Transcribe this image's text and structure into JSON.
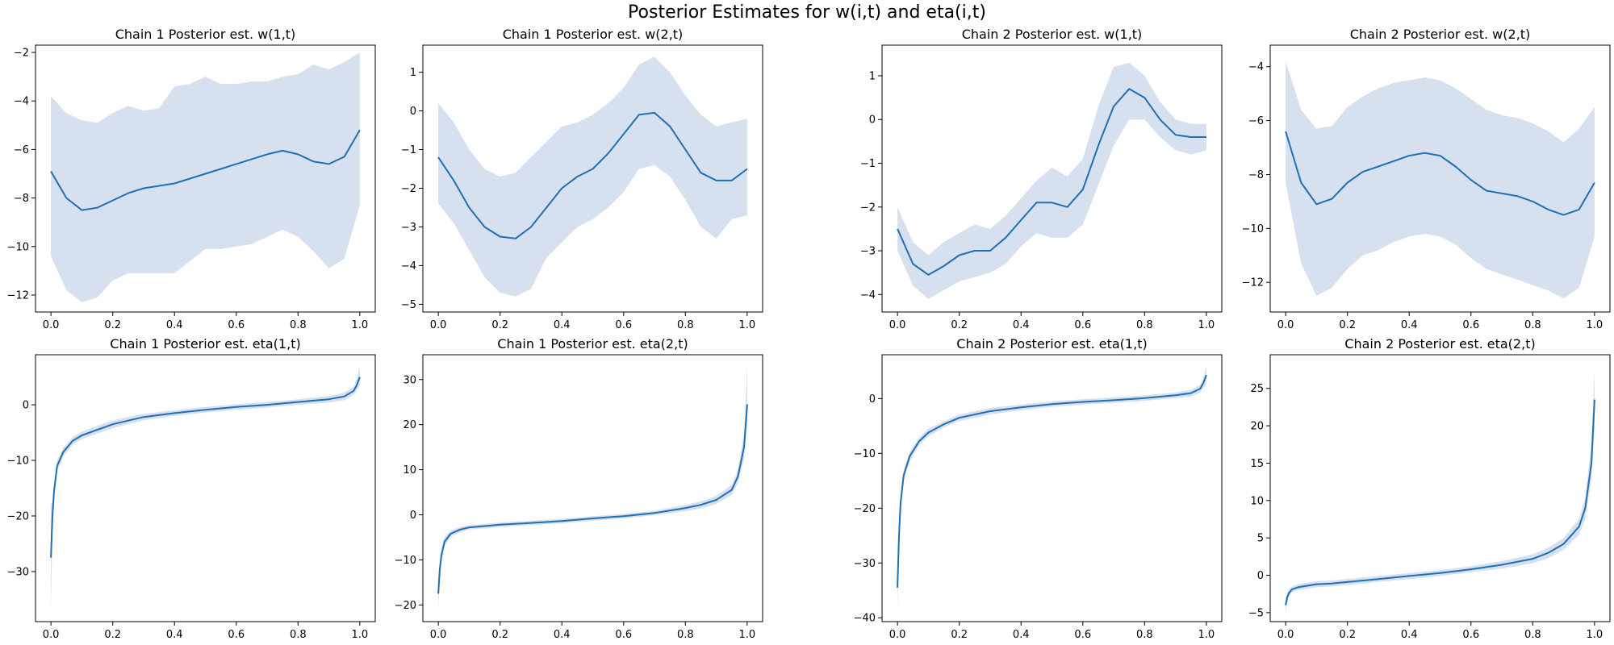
{
  "figure": {
    "title": "Posterior Estimates for w(i,t) and eta(i,t)"
  },
  "colors": {
    "line": "#1f6fb4",
    "band": "#b4c7e0",
    "axes": "#000000"
  },
  "chart_data": [
    {
      "type": "line",
      "title": "Chain 1 Posterior est. w(1,t)",
      "xlim": [
        -0.05,
        1.05
      ],
      "ylim": [
        -12.7,
        -1.7
      ],
      "xticks": [
        0.0,
        0.2,
        0.4,
        0.6,
        0.8,
        1.0
      ],
      "yticks": [
        -12,
        -10,
        -8,
        -6,
        -4,
        -2
      ],
      "grid": false,
      "series": [
        {
          "x": [
            0.0,
            0.05,
            0.1,
            0.15,
            0.2,
            0.25,
            0.3,
            0.35,
            0.4,
            0.45,
            0.5,
            0.55,
            0.6,
            0.65,
            0.7,
            0.75,
            0.8,
            0.85,
            0.9,
            0.95,
            1.0
          ],
          "mean": [
            -6.9,
            -8.0,
            -8.5,
            -8.4,
            -8.1,
            -7.8,
            -7.6,
            -7.5,
            -7.4,
            -7.2,
            -7.0,
            -6.8,
            -6.6,
            -6.4,
            -6.2,
            -6.05,
            -6.2,
            -6.5,
            -6.6,
            -6.3,
            -5.2
          ],
          "lower": [
            -10.4,
            -11.8,
            -12.3,
            -12.1,
            -11.4,
            -11.1,
            -11.1,
            -11.1,
            -11.1,
            -10.6,
            -10.1,
            -10.1,
            -10.0,
            -9.9,
            -9.6,
            -9.3,
            -9.6,
            -10.2,
            -10.9,
            -10.5,
            -8.3
          ],
          "upper": [
            -3.8,
            -4.5,
            -4.8,
            -4.9,
            -4.5,
            -4.2,
            -4.4,
            -4.3,
            -3.4,
            -3.3,
            -3.0,
            -3.3,
            -3.3,
            -3.2,
            -3.2,
            -3.0,
            -2.9,
            -2.5,
            -2.7,
            -2.4,
            -2.0
          ]
        }
      ]
    },
    {
      "type": "line",
      "title": "Chain 1 Posterior est. w(2,t)",
      "xlim": [
        -0.05,
        1.05
      ],
      "ylim": [
        -5.2,
        1.7
      ],
      "xticks": [
        0.0,
        0.2,
        0.4,
        0.6,
        0.8,
        1.0
      ],
      "yticks": [
        -5,
        -4,
        -3,
        -2,
        -1,
        0,
        1
      ],
      "grid": false,
      "series": [
        {
          "x": [
            0.0,
            0.05,
            0.1,
            0.15,
            0.2,
            0.25,
            0.3,
            0.35,
            0.4,
            0.45,
            0.5,
            0.55,
            0.6,
            0.65,
            0.7,
            0.75,
            0.8,
            0.85,
            0.9,
            0.95,
            1.0
          ],
          "mean": [
            -1.2,
            -1.8,
            -2.5,
            -3.0,
            -3.25,
            -3.3,
            -3.0,
            -2.5,
            -2.0,
            -1.7,
            -1.5,
            -1.1,
            -0.6,
            -0.1,
            -0.05,
            -0.4,
            -1.0,
            -1.6,
            -1.8,
            -1.8,
            -1.5
          ],
          "lower": [
            -2.4,
            -2.9,
            -3.6,
            -4.3,
            -4.7,
            -4.8,
            -4.6,
            -3.8,
            -3.4,
            -3.0,
            -2.8,
            -2.5,
            -2.1,
            -1.5,
            -1.4,
            -1.7,
            -2.3,
            -3.0,
            -3.3,
            -2.8,
            -2.7
          ],
          "upper": [
            0.2,
            -0.3,
            -1.0,
            -1.5,
            -1.7,
            -1.6,
            -1.2,
            -0.8,
            -0.4,
            -0.3,
            -0.1,
            0.2,
            0.6,
            1.2,
            1.4,
            1.0,
            0.4,
            -0.1,
            -0.4,
            -0.3,
            -0.2
          ]
        }
      ]
    },
    {
      "type": "line",
      "title": "Chain 2 Posterior est. w(1,t)",
      "xlim": [
        -0.05,
        1.05
      ],
      "ylim": [
        -4.4,
        1.7
      ],
      "xticks": [
        0.0,
        0.2,
        0.4,
        0.6,
        0.8,
        1.0
      ],
      "yticks": [
        -4,
        -3,
        -2,
        -1,
        0,
        1
      ],
      "grid": false,
      "series": [
        {
          "x": [
            0.0,
            0.05,
            0.1,
            0.15,
            0.2,
            0.25,
            0.3,
            0.35,
            0.4,
            0.45,
            0.5,
            0.55,
            0.6,
            0.65,
            0.7,
            0.75,
            0.8,
            0.85,
            0.9,
            0.95,
            1.0
          ],
          "mean": [
            -2.5,
            -3.3,
            -3.55,
            -3.35,
            -3.1,
            -3.0,
            -3.0,
            -2.7,
            -2.3,
            -1.9,
            -1.9,
            -2.0,
            -1.6,
            -0.6,
            0.3,
            0.7,
            0.5,
            0.0,
            -0.35,
            -0.4,
            -0.4
          ],
          "lower": [
            -3.0,
            -3.8,
            -4.1,
            -3.9,
            -3.7,
            -3.6,
            -3.5,
            -3.3,
            -2.9,
            -2.6,
            -2.7,
            -2.7,
            -2.4,
            -1.5,
            -0.6,
            0.0,
            0.0,
            -0.4,
            -0.7,
            -0.8,
            -0.7
          ],
          "upper": [
            -2.0,
            -2.8,
            -3.1,
            -2.8,
            -2.6,
            -2.4,
            -2.5,
            -2.2,
            -1.8,
            -1.4,
            -1.1,
            -1.3,
            -0.9,
            0.3,
            1.2,
            1.3,
            1.0,
            0.4,
            0.0,
            -0.1,
            -0.1
          ]
        }
      ]
    },
    {
      "type": "line",
      "title": "Chain 2 Posterior est. w(2,t)",
      "xlim": [
        -0.05,
        1.05
      ],
      "ylim": [
        -13.1,
        -3.2
      ],
      "xticks": [
        0.0,
        0.2,
        0.4,
        0.6,
        0.8,
        1.0
      ],
      "yticks": [
        -12,
        -10,
        -8,
        -6,
        -4
      ],
      "grid": false,
      "series": [
        {
          "x": [
            0.0,
            0.05,
            0.1,
            0.15,
            0.2,
            0.25,
            0.3,
            0.35,
            0.4,
            0.45,
            0.5,
            0.55,
            0.6,
            0.65,
            0.7,
            0.75,
            0.8,
            0.85,
            0.9,
            0.95,
            1.0
          ],
          "mean": [
            -6.4,
            -8.3,
            -9.1,
            -8.9,
            -8.3,
            -7.9,
            -7.7,
            -7.5,
            -7.3,
            -7.2,
            -7.3,
            -7.7,
            -8.2,
            -8.6,
            -8.7,
            -8.8,
            -9.0,
            -9.3,
            -9.5,
            -9.3,
            -8.3
          ],
          "lower": [
            -8.3,
            -11.3,
            -12.5,
            -12.2,
            -11.5,
            -11.0,
            -10.8,
            -10.5,
            -10.3,
            -10.2,
            -10.3,
            -10.6,
            -11.1,
            -11.5,
            -11.7,
            -11.9,
            -12.1,
            -12.3,
            -12.6,
            -12.2,
            -10.3
          ],
          "upper": [
            -3.8,
            -5.6,
            -6.3,
            -6.2,
            -5.5,
            -5.1,
            -4.8,
            -4.6,
            -4.5,
            -4.4,
            -4.5,
            -4.8,
            -5.2,
            -5.6,
            -5.8,
            -5.9,
            -6.1,
            -6.4,
            -6.8,
            -6.3,
            -5.5
          ]
        }
      ]
    },
    {
      "type": "line",
      "title": "Chain 1 Posterior est. eta(1,t)",
      "xlim": [
        -0.05,
        1.05
      ],
      "ylim": [
        -39,
        9
      ],
      "xticks": [
        0.0,
        0.2,
        0.4,
        0.6,
        0.8,
        1.0
      ],
      "yticks": [
        -30,
        -20,
        -10,
        0
      ],
      "grid": false,
      "series": [
        {
          "x": [
            0.0,
            0.005,
            0.01,
            0.02,
            0.04,
            0.07,
            0.1,
            0.15,
            0.2,
            0.3,
            0.4,
            0.5,
            0.6,
            0.7,
            0.8,
            0.9,
            0.95,
            0.98,
            0.99,
            1.0
          ],
          "mean": [
            -27.5,
            -20.0,
            -15.5,
            -11.0,
            -8.5,
            -6.5,
            -5.5,
            -4.5,
            -3.5,
            -2.2,
            -1.5,
            -0.9,
            -0.4,
            0.0,
            0.5,
            1.0,
            1.5,
            2.5,
            3.5,
            5.0
          ],
          "lower": [
            -37.0,
            -22.5,
            -17.0,
            -12.0,
            -9.3,
            -7.2,
            -6.2,
            -5.2,
            -4.2,
            -2.8,
            -2.0,
            -1.4,
            -0.9,
            -0.5,
            0.0,
            0.4,
            0.8,
            1.8,
            2.6,
            3.5
          ],
          "upper": [
            -18.0,
            -17.5,
            -14.0,
            -10.0,
            -7.7,
            -5.8,
            -4.8,
            -3.8,
            -2.8,
            -1.6,
            -1.0,
            -0.4,
            0.1,
            0.5,
            1.0,
            1.6,
            2.2,
            3.2,
            4.6,
            7.0
          ]
        }
      ]
    },
    {
      "type": "line",
      "title": "Chain 1 Posterior est. eta(2,t)",
      "xlim": [
        -0.05,
        1.05
      ],
      "ylim": [
        -23.7,
        35.5
      ],
      "xticks": [
        0.0,
        0.2,
        0.4,
        0.6,
        0.8,
        1.0
      ],
      "yticks": [
        -20,
        -10,
        0,
        10,
        20,
        30
      ],
      "grid": false,
      "series": [
        {
          "x": [
            0.0,
            0.005,
            0.01,
            0.02,
            0.04,
            0.07,
            0.1,
            0.15,
            0.2,
            0.3,
            0.4,
            0.5,
            0.6,
            0.7,
            0.8,
            0.85,
            0.9,
            0.95,
            0.97,
            0.99,
            1.0
          ],
          "mean": [
            -17.5,
            -12.0,
            -9.0,
            -6.0,
            -4.2,
            -3.3,
            -2.8,
            -2.5,
            -2.2,
            -1.8,
            -1.4,
            -0.8,
            -0.3,
            0.4,
            1.5,
            2.2,
            3.3,
            5.5,
            8.5,
            15.0,
            24.5
          ],
          "lower": [
            -21.0,
            -14.0,
            -10.5,
            -7.0,
            -4.9,
            -3.9,
            -3.3,
            -3.0,
            -2.7,
            -2.3,
            -1.9,
            -1.3,
            -0.8,
            -0.1,
            0.8,
            1.4,
            2.4,
            4.4,
            7.0,
            12.5,
            20.5
          ],
          "upper": [
            -14.0,
            -10.0,
            -7.5,
            -5.0,
            -3.5,
            -2.7,
            -2.3,
            -2.0,
            -1.7,
            -1.3,
            -0.9,
            -0.3,
            0.2,
            0.9,
            2.2,
            3.0,
            4.2,
            6.6,
            10.0,
            18.0,
            33.0
          ]
        }
      ]
    },
    {
      "type": "line",
      "title": "Chain 2 Posterior est. eta(1,t)",
      "xlim": [
        -0.05,
        1.05
      ],
      "ylim": [
        -40.7,
        8.0
      ],
      "xticks": [
        0.0,
        0.2,
        0.4,
        0.6,
        0.8,
        1.0
      ],
      "yticks": [
        -40,
        -30,
        -20,
        -10,
        0
      ],
      "grid": false,
      "series": [
        {
          "x": [
            0.0,
            0.005,
            0.01,
            0.02,
            0.04,
            0.07,
            0.1,
            0.15,
            0.2,
            0.3,
            0.4,
            0.5,
            0.6,
            0.7,
            0.8,
            0.9,
            0.95,
            0.98,
            0.99,
            1.0
          ],
          "mean": [
            -34.5,
            -25.0,
            -19.0,
            -14.0,
            -10.5,
            -7.8,
            -6.2,
            -4.7,
            -3.5,
            -2.3,
            -1.6,
            -1.0,
            -0.6,
            -0.3,
            0.1,
            0.6,
            1.0,
            1.8,
            2.8,
            4.3
          ],
          "lower": [
            -38.5,
            -27.0,
            -20.5,
            -15.0,
            -11.3,
            -8.5,
            -6.9,
            -5.3,
            -4.1,
            -2.9,
            -2.1,
            -1.5,
            -1.1,
            -0.8,
            -0.4,
            0.1,
            0.4,
            1.1,
            1.9,
            2.8
          ],
          "upper": [
            -30.5,
            -23.0,
            -17.5,
            -13.0,
            -9.7,
            -7.1,
            -5.5,
            -4.1,
            -2.9,
            -1.7,
            -1.1,
            -0.5,
            -0.1,
            0.2,
            0.6,
            1.1,
            1.6,
            2.5,
            3.7,
            6.0
          ]
        }
      ]
    },
    {
      "type": "line",
      "title": "Chain 2 Posterior est. eta(2,t)",
      "xlim": [
        -0.05,
        1.05
      ],
      "ylim": [
        -6.2,
        29.5
      ],
      "xticks": [
        0.0,
        0.2,
        0.4,
        0.6,
        0.8,
        1.0
      ],
      "yticks": [
        -5,
        0,
        5,
        10,
        15,
        20,
        25
      ],
      "grid": false,
      "series": [
        {
          "x": [
            0.0,
            0.005,
            0.01,
            0.02,
            0.04,
            0.07,
            0.1,
            0.15,
            0.2,
            0.3,
            0.4,
            0.5,
            0.6,
            0.7,
            0.8,
            0.85,
            0.9,
            0.95,
            0.97,
            0.99,
            1.0
          ],
          "mean": [
            -4.0,
            -3.0,
            -2.4,
            -1.9,
            -1.6,
            -1.4,
            -1.2,
            -1.1,
            -0.9,
            -0.5,
            -0.1,
            0.3,
            0.8,
            1.4,
            2.2,
            3.0,
            4.2,
            6.5,
            9.0,
            15.0,
            23.5
          ],
          "lower": [
            -5.0,
            -3.6,
            -2.9,
            -2.3,
            -2.0,
            -1.8,
            -1.6,
            -1.5,
            -1.3,
            -0.9,
            -0.5,
            -0.1,
            0.4,
            0.9,
            1.6,
            2.3,
            3.4,
            5.4,
            7.6,
            12.8,
            19.5
          ],
          "upper": [
            -3.0,
            -2.4,
            -1.9,
            -1.5,
            -1.2,
            -1.0,
            -0.8,
            -0.7,
            -0.5,
            -0.1,
            0.3,
            0.7,
            1.2,
            1.9,
            2.8,
            3.7,
            5.0,
            7.6,
            10.4,
            17.5,
            27.5
          ]
        }
      ]
    }
  ]
}
